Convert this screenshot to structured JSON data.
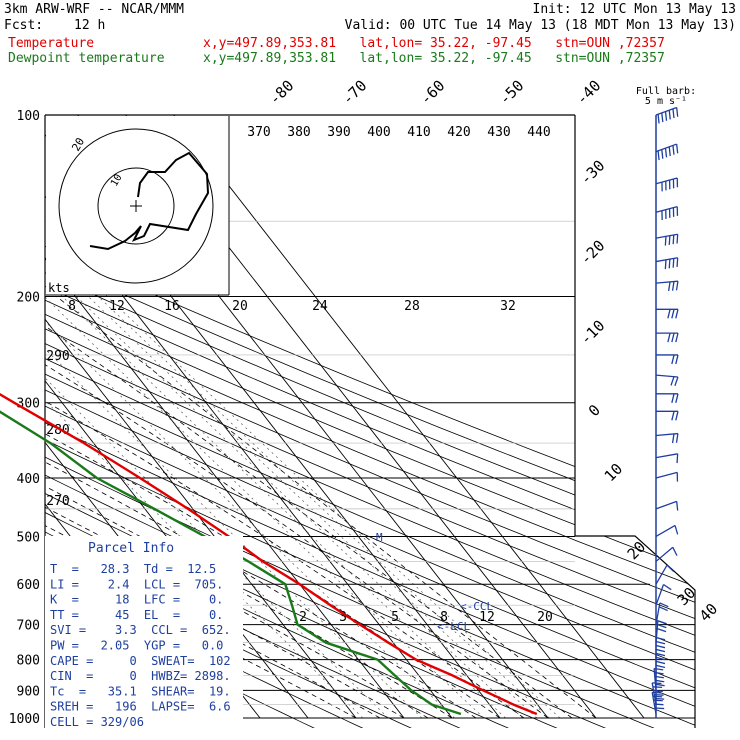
{
  "header": {
    "title": "3km ARW-WRF -- NCAR/MMM",
    "init": "Init: 12 UTC Mon 13 May 13",
    "fcst_label": "Fcst:",
    "fcst_value": "12 h",
    "valid": "Valid: 00 UTC Tue 14 May 13 (18 MDT Mon 13 May 13)"
  },
  "legend": {
    "temp_label": "Temperature",
    "dew_label": "Dewpoint temperature",
    "info": "x,y=497.89,353.81   lat,lon= 35.22, -97.45   stn=OUN ,72357",
    "temp_color": "#e00000",
    "dew_color": "#1a7a1a"
  },
  "wind_legend": {
    "line1": "Full barb:",
    "line2": "5 m s⁻¹"
  },
  "hodograph": {
    "kts_label": "kts",
    "rings": [
      "10",
      "20"
    ]
  },
  "parcel": {
    "title": "Parcel Info",
    "rows": [
      "T  =   28.3  Td =  12.5",
      "LI =    2.4  LCL =  705.",
      "K  =     18  LFC =    0.",
      "TT =     45  EL  =    0.",
      "SVI =    3.3  CCL =  652.",
      "PW =   2.05  YGP =   0.0",
      "CAPE =     0  SWEAT=  102",
      "CIN  =     0  HWBZ= 2898.",
      "Tc  =   35.1  SHEAR=  19.",
      "SREH =   196  LAPSE=  6.6",
      "CELL = 329/06"
    ]
  },
  "markers": {
    "ccl": "<-CCL",
    "lcl": "<-LCL",
    "m": "M"
  },
  "chart_data": {
    "type": "line",
    "title": "3km ARW-WRF -- NCAR/MMM",
    "xlabel": "",
    "ylabel": "",
    "pressure_ticks": [
      100,
      200,
      300,
      400,
      500,
      600,
      700,
      800,
      900,
      1000
    ],
    "isotherm_labels": [
      "-80",
      "-70",
      "-60",
      "-50",
      "-40",
      "-30",
      "-20",
      "-10",
      "0",
      "10",
      "20",
      "30",
      "40"
    ],
    "theta_labels_top": [
      "370",
      "380",
      "390",
      "400",
      "410",
      "420",
      "430",
      "440"
    ],
    "theta_labels_left": [
      "290",
      "280",
      "270"
    ],
    "mixing_ratio_labels_upper": [
      "8",
      "12",
      "16",
      "20",
      "24",
      "28",
      "32"
    ],
    "mixing_ratio_labels_lower": [
      "2",
      "3",
      "5",
      "8",
      "12",
      "20"
    ],
    "series": [
      {
        "name": "Temperature",
        "color": "#e00000",
        "pressure": [
          985,
          950,
          900,
          850,
          800,
          750,
          700,
          650,
          600,
          550,
          500,
          450,
          400,
          350,
          300,
          250,
          200,
          180,
          160,
          140,
          120,
          100
        ],
        "temperature_c": [
          28.3,
          25,
          21,
          17,
          12,
          9,
          6,
          3,
          0,
          -4,
          -7,
          -11,
          -16,
          -22,
          -30,
          -39,
          -50,
          -55,
          -58,
          -61,
          -63,
          -68
        ]
      },
      {
        "name": "Dewpoint temperature",
        "color": "#1a7a1a",
        "pressure": [
          985,
          950,
          900,
          850,
          800,
          750,
          700,
          650,
          600,
          550,
          500,
          450,
          400,
          350,
          300,
          250,
          200,
          180,
          160,
          140,
          120,
          100
        ],
        "temperature_c": [
          12.5,
          8,
          6,
          5,
          4,
          -4,
          -7,
          -5,
          -3,
          -7,
          -12,
          -18,
          -25,
          -29,
          -36,
          -52,
          -60,
          -65,
          -72,
          -78,
          -83,
          -87
        ]
      }
    ],
    "wind_barbs": {
      "pressure": [
        100,
        115,
        130,
        145,
        160,
        175,
        190,
        210,
        230,
        250,
        270,
        290,
        310,
        340,
        370,
        400,
        450,
        500,
        550,
        600,
        650,
        700,
        750,
        800,
        850,
        900,
        950,
        985
      ],
      "speed_ms": [
        30,
        30,
        25,
        25,
        20,
        20,
        15,
        15,
        15,
        10,
        10,
        10,
        10,
        10,
        5,
        5,
        5,
        5,
        5,
        5,
        5,
        10,
        15,
        20,
        20,
        25,
        25,
        25
      ],
      "direction_deg": [
        250,
        250,
        255,
        255,
        260,
        260,
        265,
        270,
        270,
        270,
        275,
        270,
        270,
        265,
        260,
        255,
        250,
        240,
        230,
        210,
        200,
        190,
        185,
        180,
        180,
        175,
        170,
        170
      ]
    }
  }
}
